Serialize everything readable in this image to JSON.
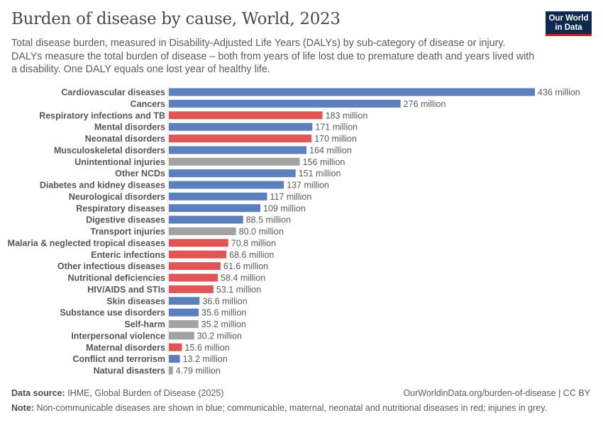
{
  "header": {
    "title": "Burden of disease by cause, World, 2023",
    "subtitle": "Total disease burden, measured in Disability-Adjusted Life Years (DALYs) by sub-category of disease or injury. DALYs measure the total burden of disease – both from years of life lost due to premature death and years lived with a disability. One DALY equals one lost year of healthy life.",
    "logo": "Our World in Data"
  },
  "colors": {
    "non_communicable": "#5b80bd",
    "communicable": "#e05656",
    "injuries": "#a2a2a2"
  },
  "chart_data": {
    "type": "bar",
    "orientation": "horizontal",
    "unit": "million",
    "xlim": [
      0,
      436
    ],
    "categories": [
      "Cardiovascular diseases",
      "Cancers",
      "Respiratory infections and TB",
      "Mental disorders",
      "Neonatal disorders",
      "Musculoskeletal disorders",
      "Unintentional injuries",
      "Other NCDs",
      "Diabetes and kidney diseases",
      "Neurological disorders",
      "Respiratory diseases",
      "Digestive diseases",
      "Transport injuries",
      "Malaria & neglected tropical diseases",
      "Enteric infections",
      "Other infectious diseases",
      "Nutritional deficiencies",
      "HIV/AIDS and STIs",
      "Skin diseases",
      "Substance use disorders",
      "Self-harm",
      "Interpersonal violence",
      "Maternal disorders",
      "Conflict and terrorism",
      "Natural disasters"
    ],
    "values": [
      436,
      276,
      183,
      171,
      170,
      164,
      156,
      151,
      137,
      117,
      109,
      88.5,
      80.0,
      70.8,
      68.6,
      61.6,
      58.4,
      53.1,
      36.6,
      35.6,
      35.2,
      30.2,
      15.6,
      13.2,
      4.79
    ],
    "data_labels": [
      "436 million",
      "276 million",
      "183 million",
      "171 million",
      "170 million",
      "164 million",
      "156 million",
      "151 million",
      "137 million",
      "117 million",
      "109 million",
      "88.5 million",
      "80.0 million",
      "70.8 million",
      "68.6 million",
      "61.6 million",
      "58.4 million",
      "53.1 million",
      "36.6 million",
      "35.6 million",
      "35.2 million",
      "30.2 million",
      "15.6 million",
      "13.2 million",
      "4.79 million"
    ],
    "groups": [
      "non_communicable",
      "non_communicable",
      "communicable",
      "non_communicable",
      "communicable",
      "non_communicable",
      "injuries",
      "non_communicable",
      "non_communicable",
      "non_communicable",
      "non_communicable",
      "non_communicable",
      "injuries",
      "communicable",
      "communicable",
      "communicable",
      "communicable",
      "communicable",
      "non_communicable",
      "non_communicable",
      "injuries",
      "injuries",
      "communicable",
      "non_communicable",
      "injuries"
    ]
  },
  "footer": {
    "source_label": "Data source:",
    "source": "IHME, Global Burden of Disease (2025)",
    "url": "OurWorldinData.org/burden-of-disease | CC BY",
    "note_label": "Note:",
    "note": "Non-communicable diseases are shown in blue; communicable, maternal, neonatal and nutritional diseases in red; injuries in grey."
  }
}
